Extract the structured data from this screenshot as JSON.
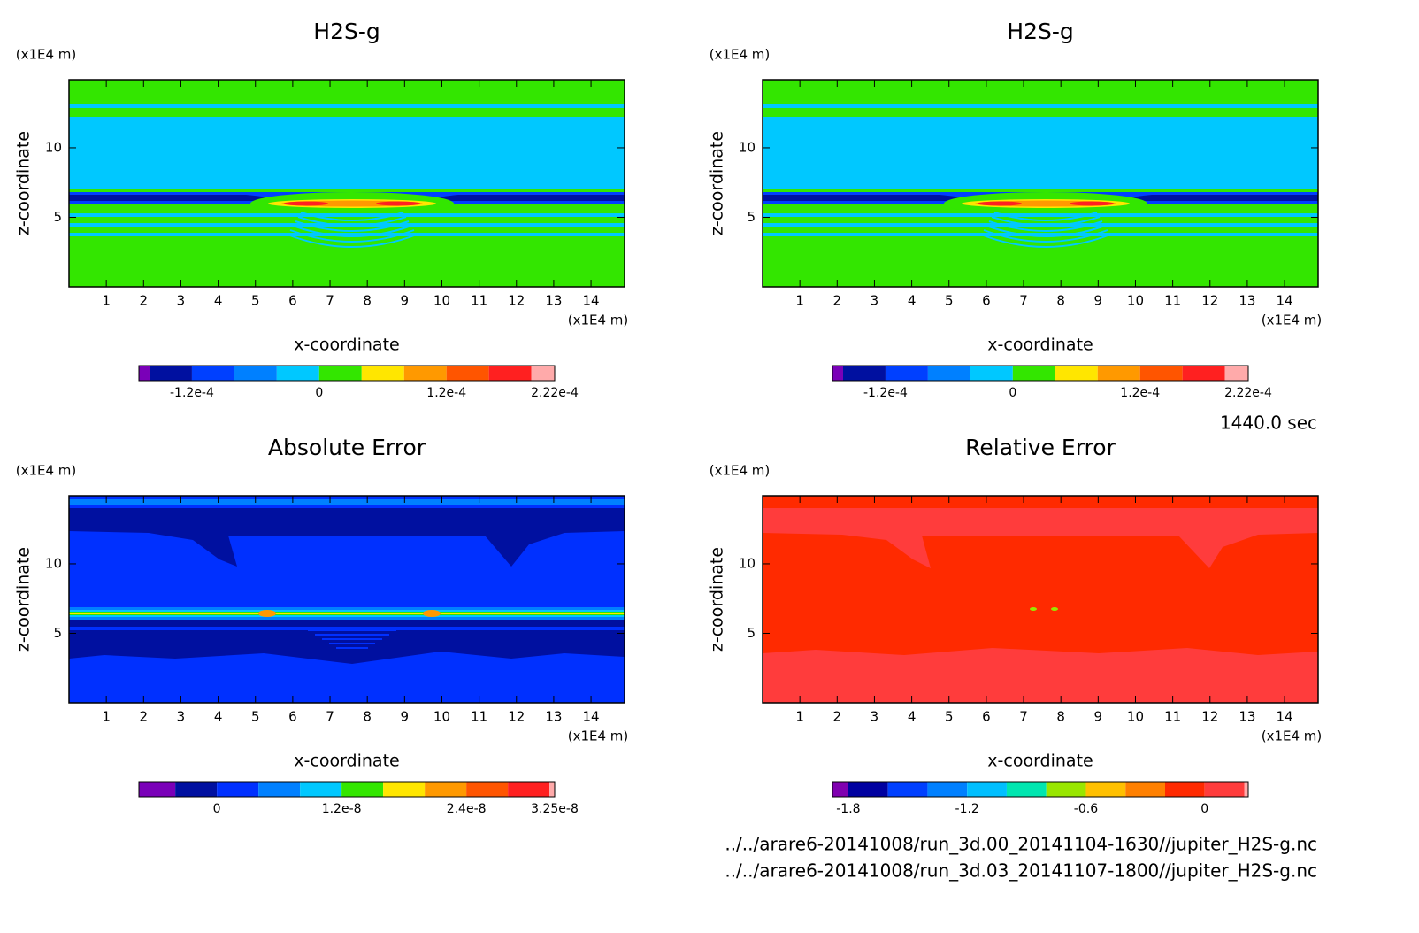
{
  "chart_data": [
    {
      "type": "contour",
      "title": "H2S-g",
      "xlabel": "x-coordinate",
      "ylabel": "z-coordinate",
      "xunit": "(x1E4 m)",
      "yunit": "(x1E4 m)",
      "xlim": [
        0,
        14.9
      ],
      "ylim": [
        0,
        14.9
      ],
      "xticks": [
        1,
        2,
        3,
        4,
        5,
        6,
        7,
        8,
        9,
        10,
        11,
        12,
        13,
        14
      ],
      "yticks": [
        5,
        10
      ],
      "colorbar": {
        "lim": [
          -0.00017,
          0.000222
        ],
        "levels": [
          -0.00016,
          -0.00012,
          -8e-05,
          -4e-05,
          0,
          4e-05,
          8e-05,
          0.00012,
          0.00016,
          0.0002
        ],
        "colors": [
          "#7a00b8",
          "#0010a0",
          "#0040ff",
          "#0080ff",
          "#00c8ff",
          "#33e600",
          "#ffe600",
          "#ff9900",
          "#ff5500",
          "#ff2020",
          "#ffaaaa"
        ],
        "ticks": [
          {
            "value": -0.00012,
            "label": "-1.2e-4"
          },
          0,
          {
            "value": 0.00012,
            "label": "1.2e-4"
          },
          {
            "value": 0.000222,
            "label": "2.22e-4"
          }
        ]
      }
    },
    {
      "type": "contour",
      "title": "H2S-g",
      "xlabel": "x-coordinate",
      "ylabel": "z-coordinate",
      "xunit": "(x1E4 m)",
      "yunit": "(x1E4 m)",
      "xlim": [
        0,
        14.9
      ],
      "ylim": [
        0,
        14.9
      ],
      "xticks": [
        1,
        2,
        3,
        4,
        5,
        6,
        7,
        8,
        9,
        10,
        11,
        12,
        13,
        14
      ],
      "yticks": [
        5,
        10
      ],
      "colorbar": {
        "lim": [
          -0.00017,
          0.000222
        ],
        "levels": [
          -0.00016,
          -0.00012,
          -8e-05,
          -4e-05,
          0,
          4e-05,
          8e-05,
          0.00012,
          0.00016,
          0.0002
        ],
        "colors": [
          "#7a00b8",
          "#0010a0",
          "#0040ff",
          "#0080ff",
          "#00c8ff",
          "#33e600",
          "#ffe600",
          "#ff9900",
          "#ff5500",
          "#ff2020",
          "#ffaaaa"
        ],
        "ticks": [
          {
            "value": -0.00012,
            "label": "-1.2e-4"
          },
          0,
          {
            "value": 0.00012,
            "label": "1.2e-4"
          },
          {
            "value": 0.000222,
            "label": "2.22e-4"
          }
        ]
      }
    },
    {
      "type": "contour",
      "title": "Absolute Error",
      "xlabel": "x-coordinate",
      "ylabel": "z-coordinate",
      "xunit": "(x1E4 m)",
      "yunit": "(x1E4 m)",
      "xlim": [
        0,
        14.9
      ],
      "ylim": [
        0,
        14.9
      ],
      "xticks": [
        1,
        2,
        3,
        4,
        5,
        6,
        7,
        8,
        9,
        10,
        11,
        12,
        13,
        14
      ],
      "yticks": [
        5,
        10
      ],
      "colorbar": {
        "lim": [
          -7.5e-09,
          3.25e-08
        ],
        "levels": [
          -4e-09,
          0,
          4e-09,
          8e-09,
          1.2e-08,
          1.6e-08,
          2e-08,
          2.4e-08,
          2.8e-08,
          3.2e-08
        ],
        "colors": [
          "#7a00b8",
          "#0010a0",
          "#0030ff",
          "#0080ff",
          "#00c8ff",
          "#33e600",
          "#ffe600",
          "#ff9900",
          "#ff5500",
          "#ff2020",
          "#ffaaaa"
        ],
        "ticks": [
          0,
          {
            "value": 1.2e-08,
            "label": "1.2e-8"
          },
          {
            "value": 2.4e-08,
            "label": "2.4e-8"
          },
          {
            "value": 3.25e-08,
            "label": "3.25e-8"
          }
        ]
      }
    },
    {
      "type": "contour",
      "title": "Relative Error",
      "xlabel": "x-coordinate",
      "ylabel": "z-coordinate",
      "xunit": "(x1E4 m)",
      "yunit": "(x1E4 m)",
      "xlim": [
        0,
        14.9
      ],
      "ylim": [
        0,
        14.9
      ],
      "xticks": [
        1,
        2,
        3,
        4,
        5,
        6,
        7,
        8,
        9,
        10,
        11,
        12,
        13,
        14
      ],
      "yticks": [
        5,
        10
      ],
      "colorbar": {
        "lim": [
          -1.88,
          0.22
        ],
        "levels": [
          -1.8,
          -1.6,
          -1.4,
          -1.2,
          -1,
          -0.8,
          -0.6,
          -0.4,
          -0.2,
          0,
          0.2
        ],
        "colors": [
          "#8000b0",
          "#0000a0",
          "#0040ff",
          "#0080ff",
          "#00bfff",
          "#00e6b0",
          "#99e600",
          "#ffc000",
          "#ff8000",
          "#ff2a00",
          "#ff3c3c",
          "#ffaaaa"
        ],
        "ticks": [
          -1.8,
          -1.2,
          -0.6,
          0
        ]
      }
    }
  ],
  "time": "1440.0 sec",
  "files": [
    "../../arare6-20141008/run_3d.00_20141104-1630//jupiter_H2S-g.nc",
    "../../arare6-20141008/run_3d.03_20141107-1800//jupiter_H2S-g.nc"
  ]
}
